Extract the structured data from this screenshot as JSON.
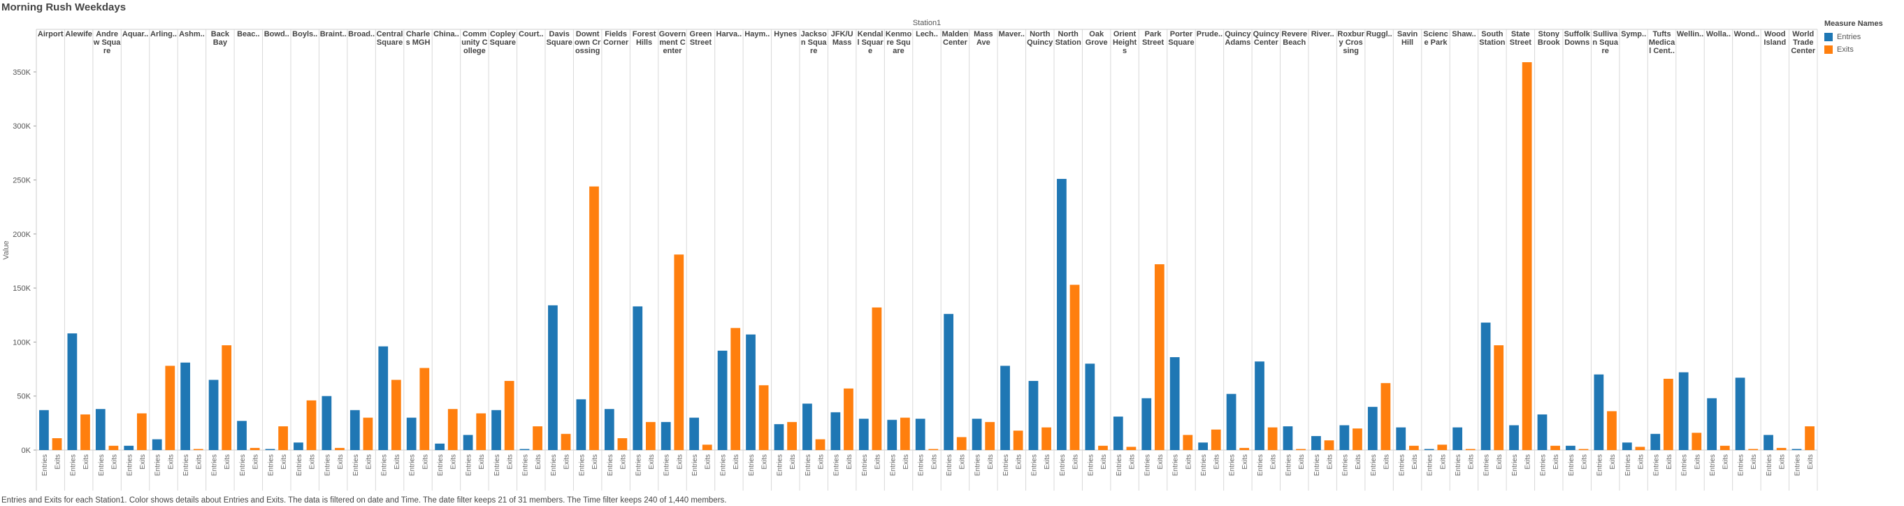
{
  "chart_data": {
    "type": "bar",
    "title": "Morning Rush Weekdays",
    "column_header": "Station1",
    "ylabel": "Value",
    "ylim": [
      0,
      370000
    ],
    "yticks": [
      0,
      50000,
      100000,
      150000,
      200000,
      250000,
      300000,
      350000
    ],
    "ytick_labels": [
      "0K",
      "50K",
      "100K",
      "150K",
      "200K",
      "250K",
      "300K",
      "350K"
    ],
    "grid": false,
    "legend_position": "top-right",
    "legend_title": "Measure Names",
    "series": [
      {
        "name": "Entries",
        "color": "#1f77b4"
      },
      {
        "name": "Exits",
        "color": "#ff7f0e"
      }
    ],
    "stations": [
      {
        "label": "Airport",
        "entries": 37000,
        "exits": 11000
      },
      {
        "label": "Alewife",
        "entries": 108000,
        "exits": 33000
      },
      {
        "label": "Andre\nw Squa\nre",
        "entries": 38000,
        "exits": 4000
      },
      {
        "label": "Aquar..",
        "entries": 4000,
        "exits": 34000
      },
      {
        "label": "Arling..",
        "entries": 10000,
        "exits": 78000
      },
      {
        "label": "Ashm..",
        "entries": 81000,
        "exits": 1000
      },
      {
        "label": "Back\nBay",
        "entries": 65000,
        "exits": 97000
      },
      {
        "label": "Beac..",
        "entries": 27000,
        "exits": 2000
      },
      {
        "label": "Bowd..",
        "entries": 1000,
        "exits": 22000
      },
      {
        "label": "Boyls..",
        "entries": 7000,
        "exits": 46000
      },
      {
        "label": "Braint..",
        "entries": 50000,
        "exits": 2000
      },
      {
        "label": "Broad..",
        "entries": 37000,
        "exits": 30000
      },
      {
        "label": "Central\nSquare",
        "entries": 96000,
        "exits": 65000
      },
      {
        "label": "Charle\ns MGH",
        "entries": 30000,
        "exits": 76000
      },
      {
        "label": "China..",
        "entries": 6000,
        "exits": 38000
      },
      {
        "label": "Comm\nunity C\nollege",
        "entries": 14000,
        "exits": 34000
      },
      {
        "label": "Copley\nSquare",
        "entries": 37000,
        "exits": 64000
      },
      {
        "label": "Court..",
        "entries": 500,
        "exits": 22000
      },
      {
        "label": "Davis\nSquare",
        "entries": 134000,
        "exits": 15000
      },
      {
        "label": "Downt\nown Cr\nossing",
        "entries": 47000,
        "exits": 244000
      },
      {
        "label": "Fields\nCorner",
        "entries": 38000,
        "exits": 11000
      },
      {
        "label": "Forest\nHills",
        "entries": 133000,
        "exits": 26000
      },
      {
        "label": "Govern\nment C\nenter",
        "entries": 26000,
        "exits": 181000
      },
      {
        "label": "Green\nStreet",
        "entries": 30000,
        "exits": 5000
      },
      {
        "label": "Harva..",
        "entries": 92000,
        "exits": 113000
      },
      {
        "label": "Haym..",
        "entries": 107000,
        "exits": 60000
      },
      {
        "label": "Hynes",
        "entries": 24000,
        "exits": 26000
      },
      {
        "label": "Jackso\nn Squa\nre",
        "entries": 43000,
        "exits": 10000
      },
      {
        "label": "JFK/U\nMass",
        "entries": 35000,
        "exits": 57000
      },
      {
        "label": "Kendal\nl Squar\ne",
        "entries": 29000,
        "exits": 132000
      },
      {
        "label": "Kenmo\nre Squ\nare",
        "entries": 28000,
        "exits": 30000
      },
      {
        "label": "Lech..",
        "entries": 29000,
        "exits": 500
      },
      {
        "label": "Malden\nCenter",
        "entries": 126000,
        "exits": 12000
      },
      {
        "label": "Mass\nAve",
        "entries": 29000,
        "exits": 26000
      },
      {
        "label": "Maver..",
        "entries": 78000,
        "exits": 18000
      },
      {
        "label": "North\nQuincy",
        "entries": 64000,
        "exits": 21000
      },
      {
        "label": "North\nStation",
        "entries": 251000,
        "exits": 153000
      },
      {
        "label": "Oak\nGrove",
        "entries": 80000,
        "exits": 4000
      },
      {
        "label": "Orient\nHeight\ns",
        "entries": 31000,
        "exits": 3000
      },
      {
        "label": "Park\nStreet",
        "entries": 48000,
        "exits": 172000
      },
      {
        "label": "Porter\nSquare",
        "entries": 86000,
        "exits": 14000
      },
      {
        "label": "Prude..",
        "entries": 7000,
        "exits": 19000
      },
      {
        "label": "Quincy\nAdams",
        "entries": 52000,
        "exits": 2000
      },
      {
        "label": "Quincy\nCenter",
        "entries": 82000,
        "exits": 21000
      },
      {
        "label": "Revere\nBeach",
        "entries": 22000,
        "exits": 1000
      },
      {
        "label": "River..",
        "entries": 13000,
        "exits": 9000
      },
      {
        "label": "Roxbur\ny Cros\nsing",
        "entries": 23000,
        "exits": 20000
      },
      {
        "label": "Ruggl..",
        "entries": 40000,
        "exits": 62000
      },
      {
        "label": "Savin\nHill",
        "entries": 21000,
        "exits": 4000
      },
      {
        "label": "Scienc\ne Park",
        "entries": 1000,
        "exits": 5000
      },
      {
        "label": "Shaw..",
        "entries": 21000,
        "exits": 1000
      },
      {
        "label": "South\nStation",
        "entries": 118000,
        "exits": 97000
      },
      {
        "label": "State\nStreet",
        "entries": 23000,
        "exits": 359000
      },
      {
        "label": "Stony\nBrook",
        "entries": 33000,
        "exits": 4000
      },
      {
        "label": "Suffolk\nDowns",
        "entries": 4000,
        "exits": 500
      },
      {
        "label": "Sulliva\nn Squa\nre",
        "entries": 70000,
        "exits": 36000
      },
      {
        "label": "Symp..",
        "entries": 7000,
        "exits": 3000
      },
      {
        "label": "Tufts\nMedica\nl Cent..",
        "entries": 15000,
        "exits": 66000
      },
      {
        "label": "Wellin..",
        "entries": 72000,
        "exits": 16000
      },
      {
        "label": "Wolla..",
        "entries": 48000,
        "exits": 4000
      },
      {
        "label": "Wond..",
        "entries": 67000,
        "exits": 1000
      },
      {
        "label": "Wood\nIsland",
        "entries": 14000,
        "exits": 2000
      },
      {
        "label": "World\nTrade\nCenter",
        "entries": 1000,
        "exits": 22000
      }
    ]
  },
  "caption": "Entries and Exits for each Station1.  Color shows details about Entries and Exits. The data is filtered on date and Time. The date filter keeps 21 of 31 members. The Time filter keeps 240 of 1,440 members."
}
